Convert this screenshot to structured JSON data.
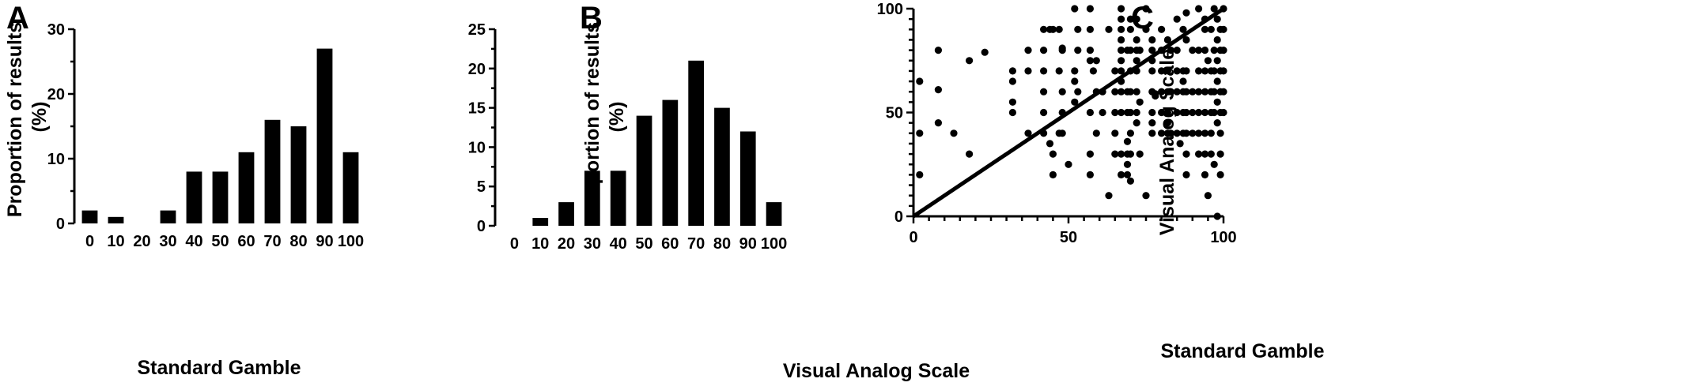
{
  "chart_data": [
    {
      "panel": "A",
      "type": "bar",
      "xlabel": "Standard Gamble",
      "ylabel": "Proportion of results (%)",
      "ylabel_lines": [
        "Proportion of results",
        "(%)"
      ],
      "categories": [
        "0",
        "10",
        "20",
        "30",
        "40",
        "50",
        "60",
        "70",
        "80",
        "90",
        "100"
      ],
      "values": [
        2,
        1,
        0,
        2,
        8,
        8,
        11,
        16,
        15,
        27,
        11
      ],
      "ylim": [
        0,
        30
      ],
      "yticks": [
        0,
        10,
        20,
        30
      ]
    },
    {
      "panel": "B",
      "type": "bar",
      "xlabel": "Visual Analog Scale",
      "ylabel": "Proportion of results (%)",
      "ylabel_lines": [
        "Proportion of results",
        "(%)"
      ],
      "categories": [
        "0",
        "10",
        "20",
        "30",
        "40",
        "50",
        "60",
        "70",
        "80",
        "90",
        "100"
      ],
      "values": [
        0,
        1,
        3,
        7,
        7,
        14,
        16,
        21,
        15,
        12,
        3
      ],
      "ylim": [
        0,
        25
      ],
      "yticks": [
        0,
        5,
        10,
        15,
        20,
        25
      ]
    },
    {
      "panel": "C",
      "type": "scatter",
      "xlabel": "Standard Gamble",
      "ylabel": "Visual Analog Scale",
      "xlim": [
        0,
        100
      ],
      "ylim": [
        0,
        100
      ],
      "xticks": [
        0,
        50,
        100
      ],
      "yticks": [
        0,
        50,
        100
      ],
      "reference_line": [
        [
          0,
          0
        ],
        [
          100,
          100
        ]
      ],
      "points": [
        [
          2,
          65
        ],
        [
          2,
          40
        ],
        [
          2,
          20
        ],
        [
          8,
          80
        ],
        [
          8,
          61
        ],
        [
          8,
          45
        ],
        [
          13,
          40
        ],
        [
          18,
          75
        ],
        [
          18,
          30
        ],
        [
          23,
          79
        ],
        [
          32,
          70
        ],
        [
          32,
          65
        ],
        [
          32,
          55
        ],
        [
          32,
          50
        ],
        [
          37,
          80
        ],
        [
          37,
          70
        ],
        [
          37,
          40
        ],
        [
          42,
          90
        ],
        [
          42,
          80
        ],
        [
          42,
          70
        ],
        [
          42,
          60
        ],
        [
          42,
          50
        ],
        [
          42,
          40
        ],
        [
          44,
          90
        ],
        [
          44,
          35
        ],
        [
          45,
          90
        ],
        [
          45,
          30
        ],
        [
          45,
          20
        ],
        [
          47,
          90
        ],
        [
          47,
          70
        ],
        [
          47,
          40
        ],
        [
          48,
          81
        ],
        [
          48,
          80
        ],
        [
          48,
          60
        ],
        [
          48,
          50
        ],
        [
          48,
          40
        ],
        [
          50,
          25
        ],
        [
          52,
          100
        ],
        [
          52,
          70
        ],
        [
          52,
          65
        ],
        [
          52,
          55
        ],
        [
          53,
          90
        ],
        [
          53,
          80
        ],
        [
          53,
          60
        ],
        [
          57,
          100
        ],
        [
          57,
          90
        ],
        [
          57,
          80
        ],
        [
          57,
          75
        ],
        [
          57,
          50
        ],
        [
          57,
          30
        ],
        [
          57,
          20
        ],
        [
          58,
          70
        ],
        [
          59,
          75
        ],
        [
          59,
          60
        ],
        [
          59,
          40
        ],
        [
          61,
          60
        ],
        [
          61,
          50
        ],
        [
          63,
          10
        ],
        [
          63,
          90
        ],
        [
          65,
          70
        ],
        [
          65,
          60
        ],
        [
          65,
          50
        ],
        [
          65,
          40
        ],
        [
          65,
          30
        ],
        [
          67,
          100
        ],
        [
          67,
          95
        ],
        [
          67,
          90
        ],
        [
          67,
          85
        ],
        [
          67,
          80
        ],
        [
          67,
          75
        ],
        [
          67,
          70
        ],
        [
          67,
          65
        ],
        [
          67,
          60
        ],
        [
          67,
          50
        ],
        [
          67,
          30
        ],
        [
          67,
          20
        ],
        [
          69,
          80
        ],
        [
          69,
          60
        ],
        [
          69,
          50
        ],
        [
          69,
          36
        ],
        [
          69,
          30
        ],
        [
          69,
          25
        ],
        [
          69,
          20
        ],
        [
          70,
          95
        ],
        [
          70,
          90
        ],
        [
          70,
          80
        ],
        [
          70,
          70
        ],
        [
          70,
          60
        ],
        [
          70,
          50
        ],
        [
          70,
          40
        ],
        [
          70,
          30
        ],
        [
          70,
          17
        ],
        [
          72,
          95
        ],
        [
          72,
          85
        ],
        [
          72,
          80
        ],
        [
          72,
          75
        ],
        [
          72,
          70
        ],
        [
          72,
          60
        ],
        [
          72,
          50
        ],
        [
          72,
          45
        ],
        [
          73,
          80
        ],
        [
          73,
          55
        ],
        [
          73,
          30
        ],
        [
          75,
          100
        ],
        [
          75,
          90
        ],
        [
          75,
          10
        ],
        [
          77,
          85
        ],
        [
          77,
          80
        ],
        [
          77,
          75
        ],
        [
          77,
          70
        ],
        [
          77,
          60
        ],
        [
          77,
          50
        ],
        [
          77,
          45
        ],
        [
          77,
          40
        ],
        [
          78,
          59
        ],
        [
          78,
          58
        ],
        [
          80,
          90
        ],
        [
          80,
          80
        ],
        [
          80,
          70
        ],
        [
          80,
          60
        ],
        [
          80,
          50
        ],
        [
          80,
          40
        ],
        [
          82,
          85
        ],
        [
          82,
          70
        ],
        [
          82,
          60
        ],
        [
          82,
          50
        ],
        [
          82,
          45
        ],
        [
          82,
          40
        ],
        [
          83,
          80
        ],
        [
          83,
          60
        ],
        [
          83,
          40
        ],
        [
          85,
          95
        ],
        [
          85,
          80
        ],
        [
          85,
          70
        ],
        [
          85,
          60
        ],
        [
          85,
          50
        ],
        [
          85,
          40
        ],
        [
          86,
          35
        ],
        [
          87,
          90
        ],
        [
          87,
          70
        ],
        [
          87,
          65
        ],
        [
          87,
          60
        ],
        [
          87,
          50
        ],
        [
          87,
          40
        ],
        [
          88,
          98
        ],
        [
          88,
          85
        ],
        [
          88,
          70
        ],
        [
          88,
          60
        ],
        [
          88,
          50
        ],
        [
          88,
          40
        ],
        [
          88,
          30
        ],
        [
          88,
          20
        ],
        [
          90,
          80
        ],
        [
          90,
          60
        ],
        [
          90,
          50
        ],
        [
          90,
          40
        ],
        [
          92,
          100
        ],
        [
          92,
          80
        ],
        [
          92,
          70
        ],
        [
          92,
          60
        ],
        [
          92,
          50
        ],
        [
          92,
          40
        ],
        [
          92,
          30
        ],
        [
          94,
          95
        ],
        [
          94,
          90
        ],
        [
          94,
          80
        ],
        [
          94,
          70
        ],
        [
          94,
          60
        ],
        [
          94,
          50
        ],
        [
          94,
          40
        ],
        [
          94,
          30
        ],
        [
          94,
          20
        ],
        [
          95,
          75
        ],
        [
          95,
          10
        ],
        [
          96,
          90
        ],
        [
          96,
          70
        ],
        [
          96,
          60
        ],
        [
          96,
          50
        ],
        [
          96,
          40
        ],
        [
          96,
          30
        ],
        [
          97,
          100
        ],
        [
          97,
          80
        ],
        [
          97,
          70
        ],
        [
          97,
          60
        ],
        [
          97,
          50
        ],
        [
          97,
          25
        ],
        [
          98,
          95
        ],
        [
          98,
          85
        ],
        [
          98,
          75
        ],
        [
          98,
          65
        ],
        [
          98,
          55
        ],
        [
          98,
          45
        ],
        [
          98,
          0
        ],
        [
          99,
          90
        ],
        [
          99,
          80
        ],
        [
          99,
          70
        ],
        [
          99,
          60
        ],
        [
          99,
          50
        ],
        [
          99,
          40
        ],
        [
          99,
          30
        ],
        [
          99,
          20
        ],
        [
          100,
          100
        ],
        [
          100,
          90
        ],
        [
          100,
          80
        ],
        [
          100,
          70
        ],
        [
          100,
          60
        ],
        [
          100,
          50
        ]
      ]
    }
  ]
}
